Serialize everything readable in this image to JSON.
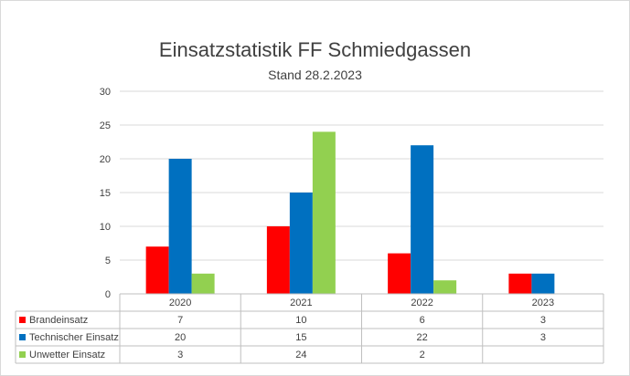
{
  "chart_data": {
    "type": "bar",
    "title": "Einsatzstatistik FF Schmiedgassen",
    "subtitle": "Stand 28.2.2023",
    "categories": [
      "2020",
      "2021",
      "2022",
      "2023"
    ],
    "series": [
      {
        "name": "Brandeinsatz",
        "color": "#ff0000",
        "values": [
          7,
          10,
          6,
          3
        ]
      },
      {
        "name": "Technischer Einsatz",
        "color": "#0070c0",
        "values": [
          20,
          15,
          22,
          3
        ]
      },
      {
        "name": "Unwetter Einsatz",
        "color": "#92d050",
        "values": [
          3,
          24,
          2,
          null
        ]
      }
    ],
    "ylim": [
      0,
      30
    ],
    "yticks": [
      0,
      5,
      10,
      15,
      20,
      25,
      30
    ],
    "grid": true,
    "legend": "data-table"
  }
}
